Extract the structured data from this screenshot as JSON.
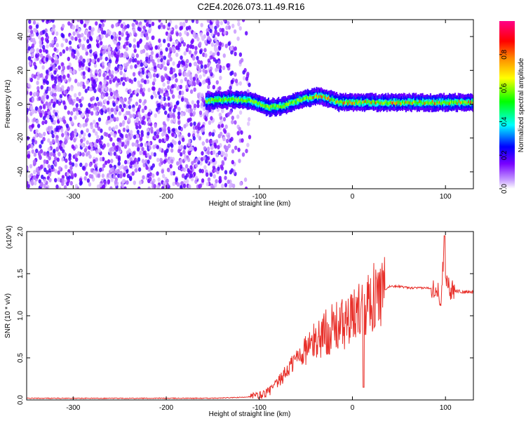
{
  "title": "C2E4.2026.073.11.49.R16",
  "chart_data": [
    {
      "type": "heatmap",
      "xlabel": "Height of straight line (km)",
      "ylabel": "Frequency (Hz)",
      "xlim": [
        -350,
        130
      ],
      "ylim": [
        -50,
        50
      ],
      "xticks": [
        "-300",
        "-200",
        "-100",
        "0",
        "100"
      ],
      "yticks": [
        "-40",
        "-20",
        "0",
        "20",
        "40"
      ],
      "colorbar": {
        "label": "Normalized spectral amplitude",
        "range": [
          0,
          1
        ],
        "ticks": [
          "0.0",
          "0.2",
          "0.4",
          "0.6",
          "0.8"
        ],
        "colors": [
          "#ffffff",
          "#7700ff",
          "#0000ff",
          "#00ffff",
          "#00ff00",
          "#ffff00",
          "#ff8800",
          "#ff0000",
          "#ff0088"
        ]
      },
      "ridge": {
        "x": [
          -155,
          -130,
          -110,
          -90,
          -75,
          -60,
          -45,
          -35,
          -25,
          -15,
          -5,
          5,
          20,
          40,
          60,
          80,
          100,
          115,
          130
        ],
        "y": [
          2,
          3,
          2,
          -2,
          -1,
          2,
          4,
          5,
          3,
          1,
          1,
          1,
          1,
          1,
          1,
          1,
          1,
          1,
          1
        ]
      }
    },
    {
      "type": "line",
      "xlabel": "Height of straight line (km)",
      "ylabel": "SNR (10 * v/v)",
      "y_multiplier": "(x10^4)",
      "xlim": [
        -350,
        130
      ],
      "ylim": [
        0,
        2.0
      ],
      "xticks": [
        "-300",
        "-200",
        "-100",
        "0",
        "100"
      ],
      "yticks": [
        "0.0",
        "0.5",
        "1.0",
        "1.5",
        "2.0"
      ],
      "series": [
        {
          "color": "#e8302a",
          "x": [
            -350,
            -300,
            -250,
            -200,
            -150,
            -120,
            -100,
            -90,
            -80,
            -70,
            -60,
            -50,
            -40,
            -30,
            -20,
            -10,
            0,
            10,
            20,
            30,
            40,
            50,
            60,
            70,
            80,
            90,
            95,
            98,
            100,
            105,
            110,
            120,
            130
          ],
          "y": [
            0.02,
            0.02,
            0.02,
            0.02,
            0.02,
            0.03,
            0.05,
            0.1,
            0.2,
            0.35,
            0.5,
            0.6,
            0.7,
            0.8,
            0.85,
            0.9,
            0.95,
            1.15,
            1.2,
            1.25,
            1.35,
            1.35,
            1.33,
            1.33,
            1.33,
            1.33,
            1.2,
            1.7,
            1.5,
            1.3,
            1.3,
            1.28,
            1.28
          ]
        }
      ]
    }
  ]
}
